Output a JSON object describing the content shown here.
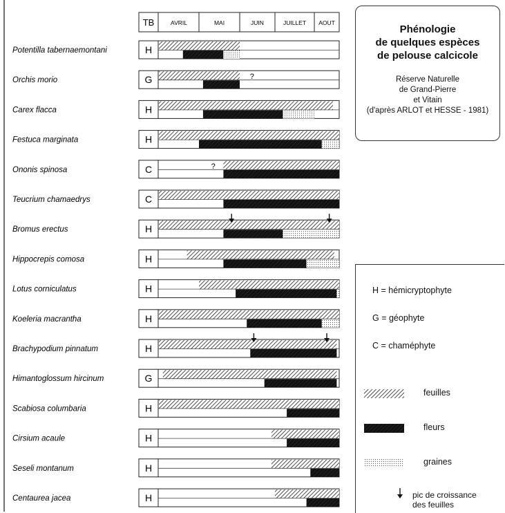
{
  "title": {
    "lines": [
      "Phénologie",
      "de quelques espèces",
      "de pelouse calcicole"
    ],
    "subtitle_lines": [
      "Réserve Naturelle",
      "de Grand-Pierre",
      "et Vitain",
      "(d'après ARLOT et HESSE - 1981)"
    ]
  },
  "legend": {
    "types": [
      {
        "code": "H",
        "label": "H = hémicryptophyte"
      },
      {
        "code": "G",
        "label": "G = géophyte"
      },
      {
        "code": "C",
        "label": "C = chaméphyte"
      }
    ],
    "patterns": {
      "leaves": "feuilles",
      "flowers": "fleurs",
      "seeds": "graines",
      "peak_line1": "pic de croissance",
      "peak_line2": "des feuilles"
    }
  },
  "chart_data": {
    "type": "timeline",
    "type_header": "TB",
    "months": [
      "AVRIL",
      "MAI",
      "JUIN",
      "JUILLET",
      "AOUT"
    ],
    "x_unit": "month index (0 = start of April, 5 = end of August)",
    "xlim": [
      0,
      5
    ],
    "species": [
      {
        "name": "Potentilla tabernaemontani",
        "type": "H",
        "leaves": [
          0,
          2.0
        ],
        "flowers": [
          0.6,
          1.6
        ],
        "seeds": [
          1.6,
          2.0
        ],
        "arrows": [],
        "unsure": []
      },
      {
        "name": "Orchis morio",
        "type": "G",
        "leaves": [
          0,
          2.0
        ],
        "flowers": [
          1.1,
          2.0
        ],
        "seeds": [],
        "arrows": [],
        "unsure": [
          2.35
        ]
      },
      {
        "name": "Carex flacca",
        "type": "H",
        "leaves": [
          0,
          4.75
        ],
        "flowers": [
          1.1,
          3.2
        ],
        "seeds": [
          3.2,
          4.0
        ],
        "arrows": [],
        "unsure": []
      },
      {
        "name": "Festuca marginata",
        "type": "H",
        "leaves": [
          0,
          5.0
        ],
        "flowers": [
          1.0,
          4.3
        ],
        "seeds": [
          4.3,
          5.0
        ],
        "arrows": [],
        "unsure": []
      },
      {
        "name": "Ononis spinosa",
        "type": "C",
        "leaves": [
          1.6,
          5.0
        ],
        "flowers": [
          1.6,
          5.0
        ],
        "seeds": [],
        "arrows": [],
        "unsure": [
          1.35
        ]
      },
      {
        "name": "Teucrium chamaedrys",
        "type": "C",
        "leaves": [
          0,
          5.0
        ],
        "flowers": [
          1.6,
          5.0
        ],
        "seeds": [],
        "arrows": [],
        "unsure": []
      },
      {
        "name": "Bromus erectus",
        "type": "H",
        "leaves": [
          0,
          5.0
        ],
        "flowers": [
          1.6,
          3.2
        ],
        "seeds": [
          3.2,
          5.0
        ],
        "arrows": [
          1.8,
          4.6
        ],
        "unsure": []
      },
      {
        "name": "Hippocrepis comosa",
        "type": "H",
        "leaves": [
          0.7,
          4.8
        ],
        "flowers": [
          1.6,
          3.8
        ],
        "seeds": [
          3.8,
          5.0
        ],
        "arrows": [],
        "unsure": []
      },
      {
        "name": "Lotus corniculatus",
        "type": "H",
        "leaves": [
          1.0,
          5.0
        ],
        "flowers": [
          1.9,
          4.9
        ],
        "seeds": [
          4.9,
          5.0
        ],
        "arrows": [],
        "unsure": []
      },
      {
        "name": "Koeleria macrantha",
        "type": "H",
        "leaves": [
          0,
          5.0
        ],
        "flowers": [
          2.2,
          4.3
        ],
        "seeds": [
          4.3,
          5.0
        ],
        "arrows": [],
        "unsure": []
      },
      {
        "name": "Brachypodium pinnatum",
        "type": "H",
        "leaves": [
          0,
          4.9
        ],
        "flowers": [
          2.3,
          4.9
        ],
        "seeds": [],
        "arrows": [
          2.4,
          4.5
        ],
        "unsure": []
      },
      {
        "name": "Himantoglossum hircinum",
        "type": "G",
        "leaves": [
          0.1,
          4.9
        ],
        "flowers": [
          2.7,
          4.9
        ],
        "seeds": [],
        "arrows": [],
        "unsure": []
      },
      {
        "name": "Scabiosa columbaria",
        "type": "H",
        "leaves": [
          0,
          5.0
        ],
        "flowers": [
          3.3,
          5.0
        ],
        "seeds": [],
        "arrows": [],
        "unsure": []
      },
      {
        "name": "Cirsium acaule",
        "type": "H",
        "leaves": [
          2.9,
          5.0
        ],
        "flowers": [
          3.3,
          5.0
        ],
        "seeds": [],
        "arrows": [],
        "unsure": []
      },
      {
        "name": "Seseli montanum",
        "type": "H",
        "leaves": [
          2.9,
          5.0
        ],
        "flowers": [
          3.9,
          5.0
        ],
        "seeds": [],
        "arrows": [],
        "unsure": []
      },
      {
        "name": "Centaurea jacea",
        "type": "H",
        "leaves": [
          3.0,
          5.0
        ],
        "flowers": [
          3.8,
          5.0
        ],
        "seeds": [],
        "arrows": [],
        "unsure": []
      }
    ],
    "unsure_symbol": "?"
  }
}
